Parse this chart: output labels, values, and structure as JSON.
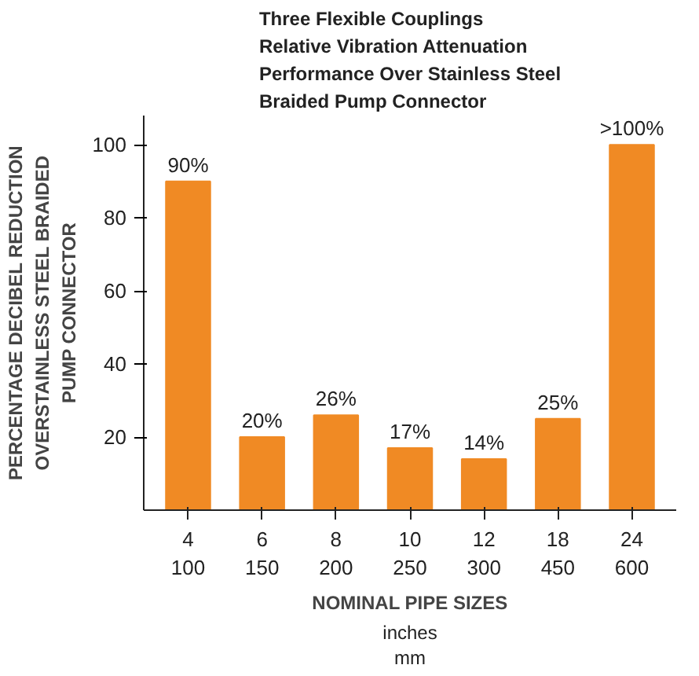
{
  "chart_data": {
    "type": "bar",
    "title": "Three Flexible Couplings\nRelative Vibration Attenuation\nPerformance Over Stainless Steel\nBraided Pump Connector",
    "ylabel": "PERCENTAGE DECIBEL REDUCTION\nOVERSTAINLESS STEEL BRAIDED\nPUMP CONNECTOR",
    "xlabel": "NOMINAL PIPE SIZES",
    "annotations": [
      "inches",
      "mm"
    ],
    "categories": [
      "4\n100",
      "6\n150",
      "8\n200",
      "10\n250",
      "12\n300",
      "18\n450",
      "24\n600"
    ],
    "values": [
      90,
      20,
      26,
      17,
      14,
      25,
      100
    ],
    "color": "#f08a24",
    "value_labels": [
      "90%",
      "20%",
      "26%",
      "17%",
      "14%",
      "25%",
      ">100%"
    ],
    "ylim": [
      0,
      108
    ],
    "yticks": [
      20,
      40,
      60,
      80,
      100
    ],
    "grid": false
  }
}
